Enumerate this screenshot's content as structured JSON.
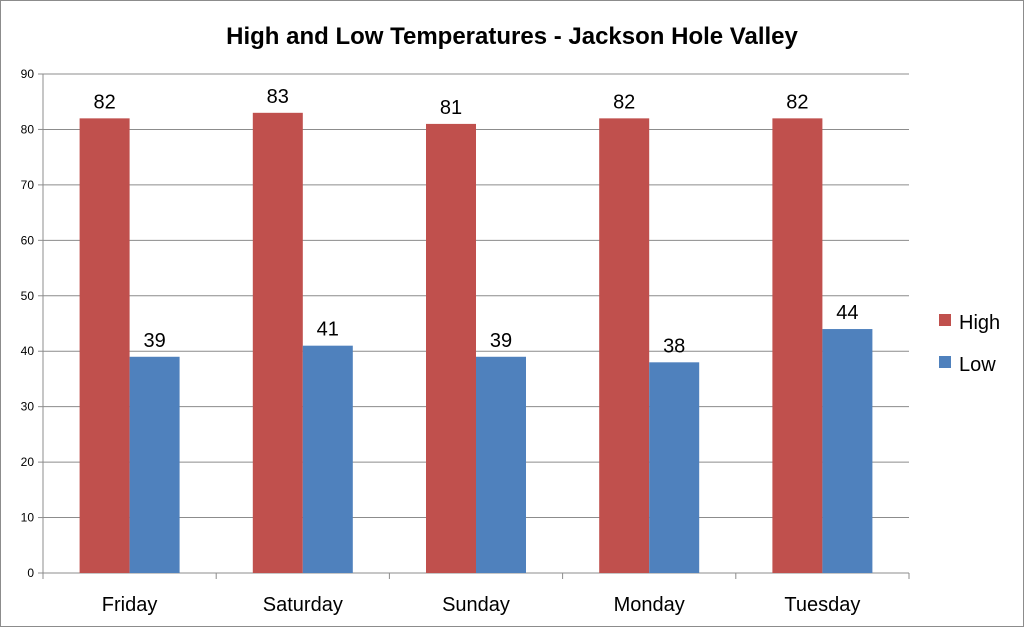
{
  "chart_data": {
    "type": "bar",
    "title": "High and Low Temperatures - Jackson Hole Valley",
    "xlabel": "",
    "ylabel": "",
    "categories": [
      "Friday",
      "Saturday",
      "Sunday",
      "Monday",
      "Tuesday"
    ],
    "series": [
      {
        "name": "High",
        "values": [
          82,
          83,
          81,
          82,
          82
        ],
        "color": "#c0504d"
      },
      {
        "name": "Low",
        "values": [
          39,
          41,
          39,
          38,
          44
        ],
        "color": "#4f81bd"
      }
    ],
    "ylim": [
      0,
      90
    ],
    "yticks": [
      0,
      10,
      20,
      30,
      40,
      50,
      60,
      70,
      80,
      90
    ],
    "grid": true,
    "data_labels": true,
    "legend_position": "right"
  }
}
